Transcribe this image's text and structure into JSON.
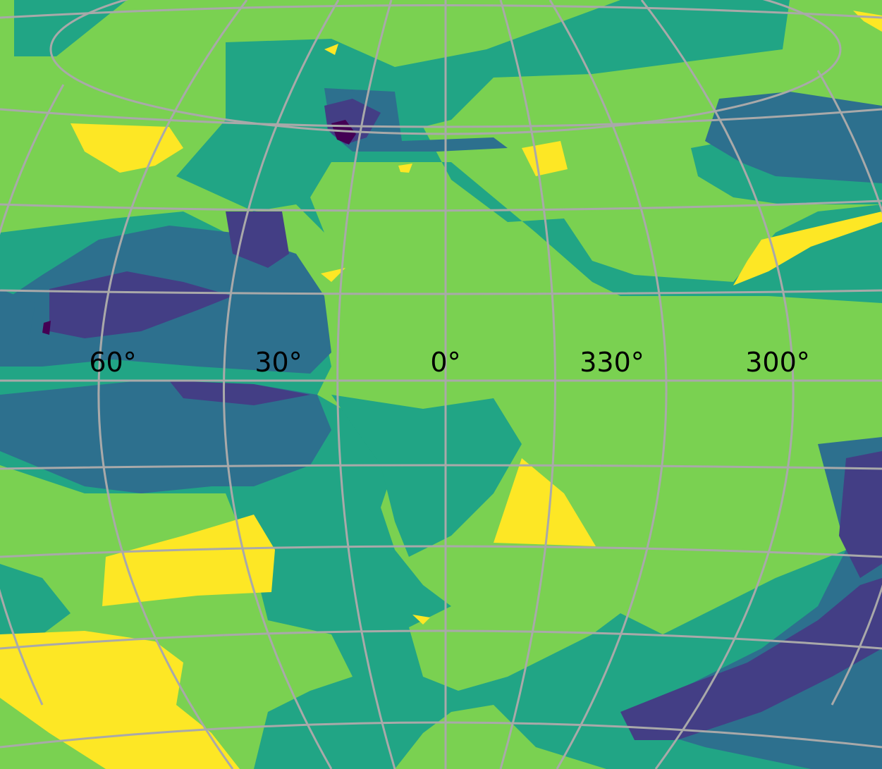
{
  "colors": {
    "level_0": "#440154",
    "level_1": "#433e85",
    "level_2": "#2d708e",
    "level_3": "#21a585",
    "level_4": "#7ad151",
    "level_5": "#fde725",
    "graticule": "#a9a9a9"
  },
  "longitude_labels": [
    "60°",
    "30°",
    "0°",
    "330°",
    "300°"
  ]
}
